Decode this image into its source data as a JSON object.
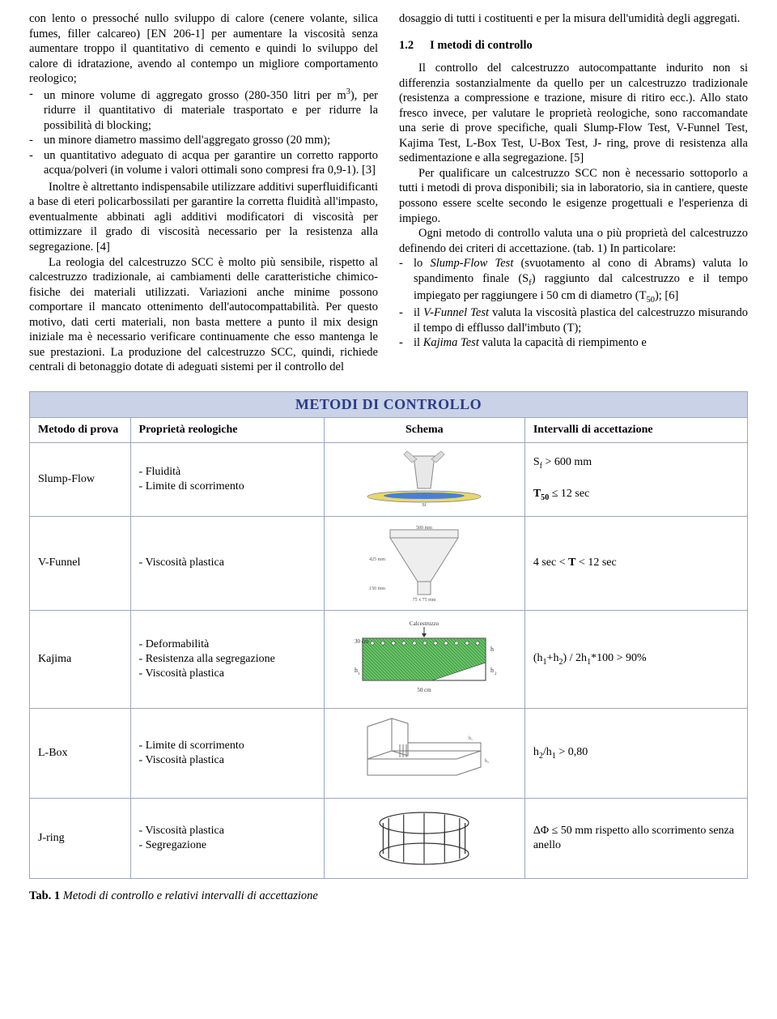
{
  "left_column": {
    "intro": "con lento o pressoché nullo sviluppo di calore (cenere volante, silica fumes, filler calcareo) [EN 206-1] per aumentare la viscosità senza aumentare troppo il quantitativo di cemento e quindi lo sviluppo del calore di idratazione, avendo al contempo un migliore comportamento reologico;",
    "b1_a": "un minore volume di aggregato grosso (280-350 litri per m",
    "b1_b": "), per ridurre il quantitativo di materiale trasportato e per ridurre la possibilità di blocking;",
    "b2": "un minore diametro massimo dell'aggregato grosso (20 mm);",
    "b3": "un quantitativo adeguato di acqua per garantire un corretto rapporto acqua/polveri (in volume i valori ottimali sono compresi fra 0,9-1). [3]",
    "p2": "Inoltre è altrettanto indispensabile utilizzare additivi superfluidificanti a base di eteri policarbossilati per garantire la corretta fluidità all'impasto, eventualmente abbinati agli additivi modificatori di viscosità per ottimizzare il grado di viscosità necessario per la resistenza alla segregazione. [4]",
    "p3": "La reologia del calcestruzzo SCC è molto più sensibile, rispetto al calcestruzzo tradizionale, ai cambiamenti delle caratteristiche chimico-fisiche dei materiali utilizzati. Variazioni anche minime possono comportare il mancato ottenimento dell'autocompattabilità. Per questo motivo, dati certi materiali, non basta mettere a punto il mix design iniziale ma è necessario verificare continuamente che esso mantenga le sue prestazioni. La produzione del calcestruzzo SCC, quindi, richiede centrali di betonaggio dotate di adeguati sistemi per il controllo del"
  },
  "right_column": {
    "p0": "dosaggio di tutti i costituenti e per la misura dell'umidità degli aggregati.",
    "heading_num": "1.2",
    "heading_text": "I metodi di controllo",
    "p1": "Il controllo del calcestruzzo autocompattante indurito non si differenzia sostanzialmente da quello per un calcestruzzo tradizionale (resistenza a compressione e trazione, misure di ritiro ecc.). Allo stato fresco invece, per valutare le proprietà reologiche, sono raccomandate una serie di prove specifiche, quali Slump-Flow Test, V-Funnel Test, Kajima Test, L-Box Test, U-Box Test, J- ring, prove di resistenza alla sedimentazione e alla segregazione. [5]",
    "p2": "Per qualificare un calcestruzzo SCC non è necessario sottoporlo a tutti i metodi di prova disponibili; sia in laboratorio, sia in cantiere, queste possono essere scelte secondo le esigenze progettuali e l'esperienza di impiego.",
    "p3": "Ogni metodo di controllo valuta una o più proprietà del calcestruzzo definendo dei criteri di accettazione. (tab. 1) In particolare:",
    "li1_a": "lo ",
    "li1_it": "Slump-Flow Test",
    "li1_b": " (svuotamento al cono di Abrams) valuta lo spandimento finale (S",
    "li1_c": ") raggiunto dal calcestruzzo e il tempo impiegato per raggiungere i 50 cm di diametro (T",
    "li1_d": "); [6]",
    "li2_a": "il ",
    "li2_it": "V-Funnel Test",
    "li2_b": " valuta la viscosità plastica del calcestruzzo misurando il tempo di efflusso dall'imbuto (T);",
    "li3_a": "il ",
    "li3_it": "Kajima Test",
    "li3_b": " valuta la capacità di riempimento e"
  },
  "table": {
    "title": "METODI DI CONTROLLO",
    "headers": {
      "h1": "Metodo di prova",
      "h2": "Proprietà reologiche",
      "h3": "Schema",
      "h4": "Intervalli di accettazione"
    },
    "rows": [
      {
        "method": "Slump-Flow",
        "props": [
          "- Fluidità",
          "- Limite di scorrimento"
        ],
        "accept_html": "S<sub>f</sub> > 600 mm<br><br><b>T<sub>50</sub></b> ≤ 12 sec",
        "schema": "slump"
      },
      {
        "method": "V-Funnel",
        "props": [
          "- Viscosità plastica"
        ],
        "accept_html": "4 sec < <b>T</b> < 12 sec",
        "schema": "vfunnel"
      },
      {
        "method": "Kajima",
        "props": [
          "- Deformabilità",
          "- Resistenza alla segregazione",
          "- Viscosità plastica"
        ],
        "accept_html": "(h<sub>1</sub>+h<sub>2</sub>) / 2h<sub>1</sub>*100 > 90%",
        "schema": "kajima"
      },
      {
        "method": "L-Box",
        "props": [
          "- Limite di scorrimento",
          "- Viscosità plastica"
        ],
        "accept_html": "h<sub>2</sub>/h<sub>1</sub> > 0,80",
        "schema": "lbox"
      },
      {
        "method": "J-ring",
        "props": [
          "- Viscosità plastica",
          "- Segregazione"
        ],
        "accept_html": "ΔΦ ≤ 50 mm rispetto allo scorrimento senza anello",
        "schema": "jring"
      }
    ]
  },
  "caption_bold": "Tab. 1",
  "caption_rest": " Metodi di controllo e relativi intervalli di accettazione",
  "colors": {
    "table_border": "#9aa7c2",
    "table_title_bg": "#c9d2e6",
    "table_title_fg": "#2b3a8a",
    "kajima_fill": "#6bc46b",
    "slump_blue": "#4a7fd6",
    "slump_yellow": "#e8d86b"
  }
}
